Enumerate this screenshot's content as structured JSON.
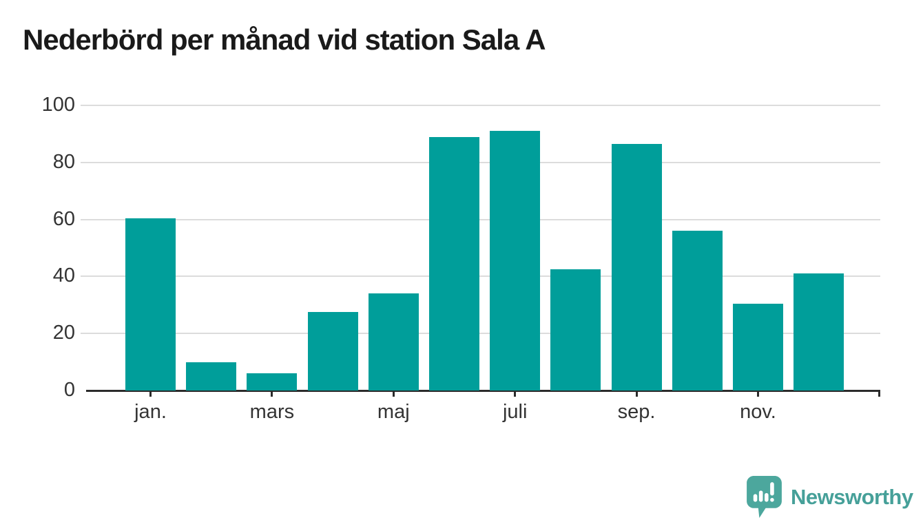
{
  "title": "Nederbörd per månad vid station Sala A",
  "colors": {
    "bar": "#009E9A",
    "axis": "#2b2b2b",
    "grid": "#dcdcdc",
    "tick_text": "#333333",
    "title_text": "#1a1a1a",
    "brand_teal": "#46A099",
    "logo_mark_teal": "#4CA79D"
  },
  "chart_data": {
    "type": "bar",
    "values": [
      60.5,
      10,
      6,
      27.5,
      34,
      89,
      91,
      42.5,
      86.5,
      56,
      30.5,
      41
    ],
    "x_tick_labels": [
      "jan.",
      "mars",
      "maj",
      "juli",
      "sep.",
      "nov."
    ],
    "x_tick_positions": [
      0,
      2,
      4,
      6,
      8,
      10
    ],
    "axis_end_tick": true,
    "y_ticks": [
      0,
      20,
      40,
      60,
      80,
      100
    ],
    "ylim": [
      0,
      100
    ],
    "title": "Nederbörd per månad vid station Sala A",
    "xlabel": "",
    "ylabel": "",
    "grid": "horizontal",
    "legend": "none"
  },
  "footer": {
    "brand": "Newsworthy",
    "logo_icon": "speech-bubble-bar-chart-exclamation-icon"
  }
}
